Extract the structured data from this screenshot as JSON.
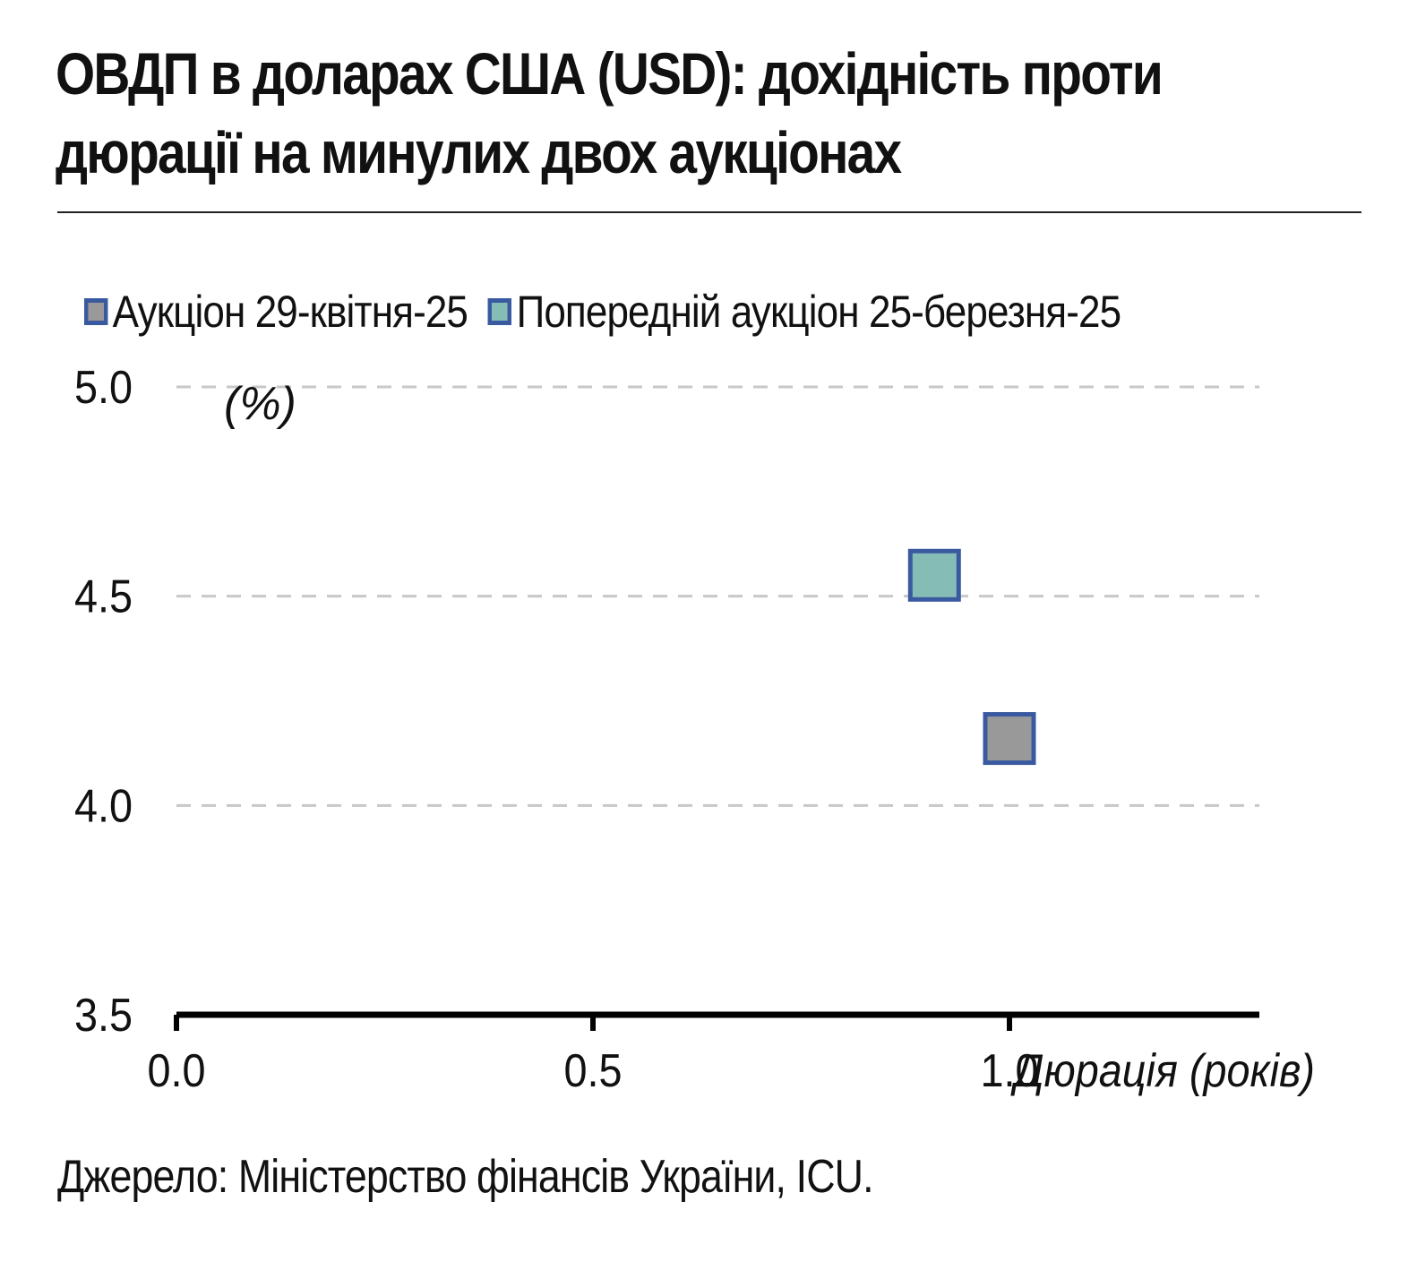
{
  "chart_data": {
    "type": "scatter",
    "title": "ОВДП в доларах США (USD): дохідність проти дюрації на минулих двох аукціонах",
    "ylabel": "(%)",
    "xlabel": "Дюрація (років)",
    "xlim": [
      0,
      1.3
    ],
    "ylim": [
      3.5,
      5.0
    ],
    "x_ticks": [
      "0.0",
      "0.5",
      "1.0"
    ],
    "x_tick_values": [
      0,
      0.5,
      1.0
    ],
    "y_ticks": [
      "5.0",
      "4.5",
      "4.0",
      "3.5"
    ],
    "y_tick_values": [
      5.0,
      4.5,
      4.0,
      3.5
    ],
    "grid": true,
    "legend_position": "top",
    "series": [
      {
        "name": "Аукціон 29-квітня-25",
        "color": "#999999",
        "edge_color": "#3a5aa0",
        "points": [
          {
            "x": 1.0,
            "y": 4.16
          }
        ]
      },
      {
        "name": "Попередній аукціон 25-березня-25",
        "color": "#86bcb6",
        "edge_color": "#3a5aa0",
        "points": [
          {
            "x": 0.91,
            "y": 4.55
          }
        ]
      }
    ]
  },
  "source": "Джерело: Міністерство фінансів України, ICU."
}
